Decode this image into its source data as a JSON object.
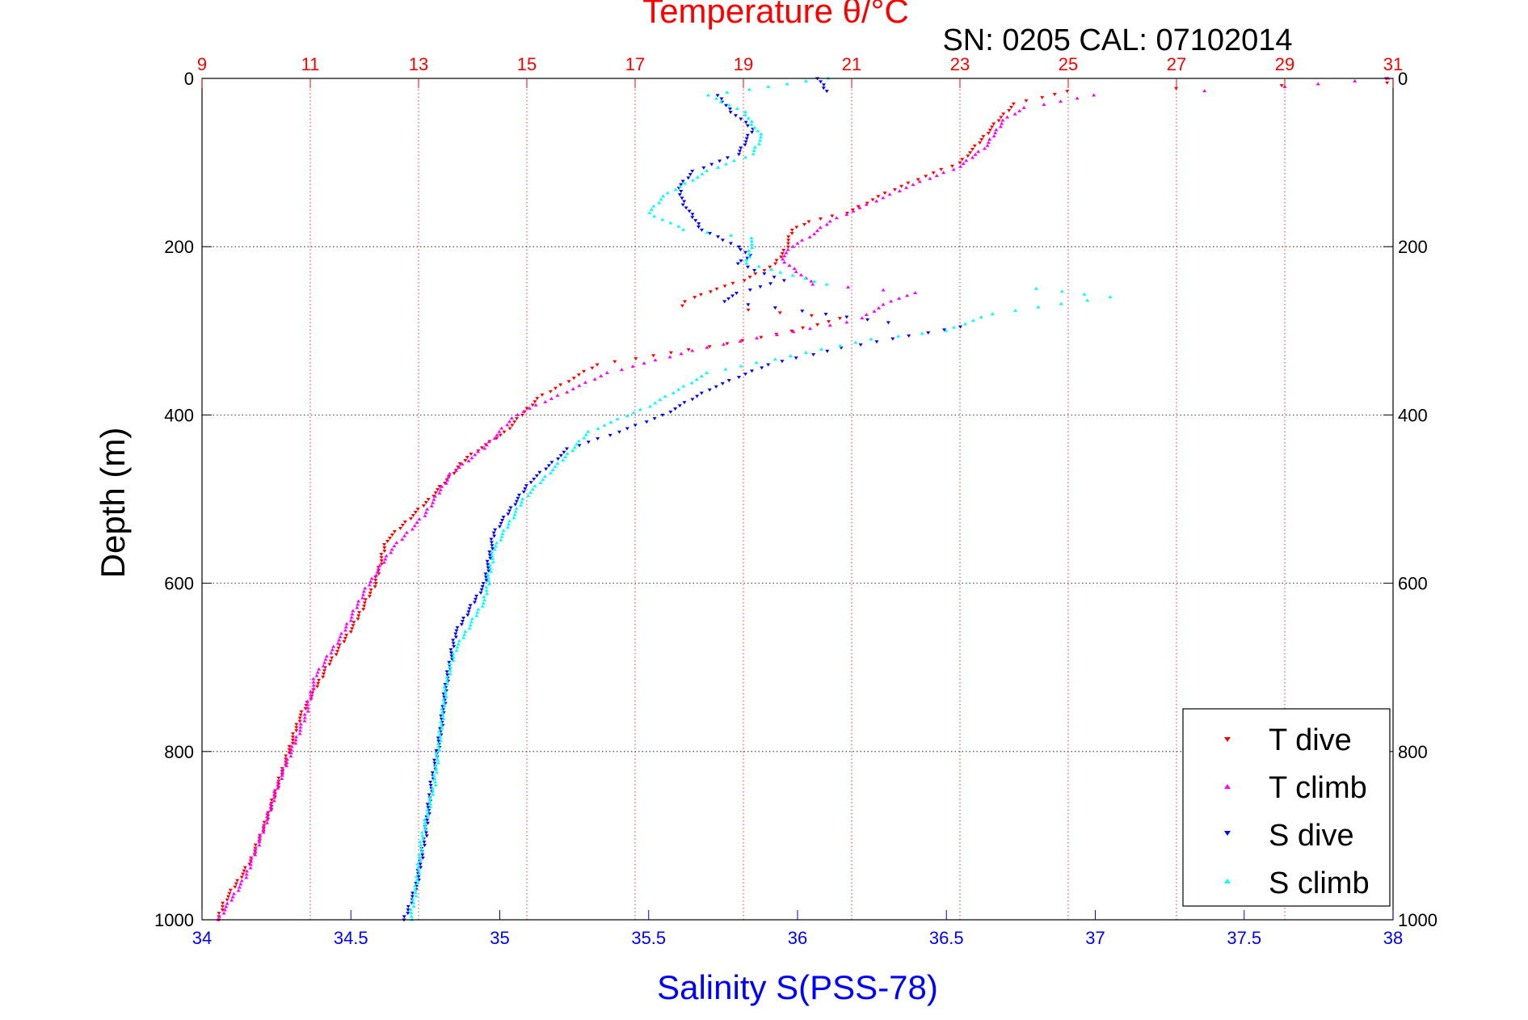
{
  "chart_data": {
    "type": "scatter",
    "title": "Temperature θ/°C",
    "subtitle": "SN: 0205  CAL: 07102014",
    "xlabel": "Salinity S(PSS-78)",
    "ylabel": "Depth (m)",
    "x_top": {
      "label": "Temperature θ/°C",
      "lim": [
        9,
        31
      ],
      "ticks": [
        9,
        11,
        13,
        15,
        17,
        19,
        21,
        23,
        25,
        27,
        29,
        31
      ]
    },
    "x_bottom": {
      "label": "Salinity S(PSS-78)",
      "lim": [
        34,
        38
      ],
      "ticks": [
        34,
        34.5,
        35,
        35.5,
        36,
        36.5,
        37,
        37.5,
        38
      ]
    },
    "y": {
      "lim": [
        0,
        1000
      ],
      "reversed": true,
      "ticks": [
        0,
        200,
        400,
        600,
        800,
        1000
      ]
    },
    "legend_position": "bottom-right",
    "series": [
      {
        "name": "T dive",
        "axis": "temperature",
        "color": "#ff0000",
        "marker": "triangle-down",
        "points": [
          [
            30.9,
            0
          ],
          [
            30.9,
            5
          ],
          [
            25,
            15
          ],
          [
            24,
            30
          ],
          [
            23.7,
            50
          ],
          [
            23.3,
            80
          ],
          [
            23,
            100
          ],
          [
            22.2,
            120
          ],
          [
            21.5,
            140
          ],
          [
            20.9,
            160
          ],
          [
            20.2,
            170
          ],
          [
            19.9,
            180
          ],
          [
            19.8,
            200
          ],
          [
            19.6,
            220
          ],
          [
            19,
            240
          ],
          [
            18.5,
            250
          ],
          [
            18.1,
            260
          ],
          [
            17.9,
            265
          ],
          [
            17.9,
            270
          ],
          [
            19.1,
            275
          ],
          [
            20.8,
            285
          ],
          [
            19.9,
            300
          ],
          [
            18.7,
            315
          ],
          [
            16.3,
            340
          ],
          [
            15.2,
            380
          ],
          [
            14.6,
            420
          ],
          [
            13.9,
            450
          ],
          [
            13.2,
            500
          ],
          [
            12.4,
            550
          ],
          [
            12.2,
            600
          ],
          [
            11.8,
            650
          ],
          [
            11.3,
            700
          ],
          [
            10.8,
            760
          ],
          [
            10.5,
            820
          ],
          [
            10.2,
            880
          ],
          [
            9.9,
            930
          ],
          [
            9.4,
            980
          ],
          [
            9.3,
            1000
          ]
        ]
      },
      {
        "name": "T climb",
        "axis": "temperature",
        "color": "#ff00ff",
        "marker": "triangle-up",
        "points": [
          [
            30.9,
            0
          ],
          [
            29,
            10
          ],
          [
            27.5,
            15
          ],
          [
            25.5,
            20
          ],
          [
            24.2,
            35
          ],
          [
            23.8,
            50
          ],
          [
            23.5,
            80
          ],
          [
            23,
            105
          ],
          [
            22,
            130
          ],
          [
            21.3,
            150
          ],
          [
            20.6,
            170
          ],
          [
            20.3,
            185
          ],
          [
            19.9,
            200
          ],
          [
            19.7,
            215
          ],
          [
            20.3,
            245
          ],
          [
            22.2,
            255
          ],
          [
            21.7,
            265
          ],
          [
            21.2,
            285
          ],
          [
            20.9,
            290
          ],
          [
            18.3,
            320
          ],
          [
            16.5,
            350
          ],
          [
            14.8,
            400
          ],
          [
            14.2,
            440
          ],
          [
            13.6,
            470
          ],
          [
            13.1,
            520
          ],
          [
            12.5,
            560
          ],
          [
            12,
            610
          ],
          [
            11.6,
            660
          ],
          [
            11.1,
            710
          ],
          [
            10.9,
            760
          ],
          [
            10.4,
            840
          ],
          [
            10.1,
            900
          ],
          [
            9.8,
            950
          ],
          [
            9.3,
            1000
          ]
        ]
      },
      {
        "name": "S dive",
        "axis": "salinity",
        "color": "#0000ff",
        "marker": "triangle-down",
        "points": [
          [
            36.07,
            0
          ],
          [
            36.1,
            15
          ],
          [
            35.73,
            20
          ],
          [
            35.78,
            40
          ],
          [
            35.85,
            60
          ],
          [
            35.8,
            90
          ],
          [
            35.65,
            110
          ],
          [
            35.6,
            130
          ],
          [
            35.62,
            150
          ],
          [
            35.68,
            180
          ],
          [
            35.8,
            200
          ],
          [
            35.84,
            210
          ],
          [
            35.8,
            220
          ],
          [
            35.95,
            240
          ],
          [
            35.8,
            255
          ],
          [
            35.75,
            265
          ],
          [
            36.1,
            280
          ],
          [
            36.3,
            290
          ],
          [
            36.55,
            295
          ],
          [
            36.15,
            320
          ],
          [
            35.9,
            340
          ],
          [
            35.7,
            370
          ],
          [
            35.55,
            400
          ],
          [
            35.4,
            420
          ],
          [
            35.23,
            440
          ],
          [
            35.1,
            480
          ],
          [
            34.98,
            540
          ],
          [
            34.95,
            600
          ],
          [
            34.85,
            660
          ],
          [
            34.82,
            720
          ],
          [
            34.8,
            780
          ],
          [
            34.77,
            840
          ],
          [
            34.75,
            900
          ],
          [
            34.72,
            960
          ],
          [
            34.68,
            1000
          ]
        ]
      },
      {
        "name": "S climb",
        "axis": "salinity",
        "color": "#00ffff",
        "marker": "triangle-up",
        "points": [
          [
            36.1,
            0
          ],
          [
            35.9,
            10
          ],
          [
            35.7,
            20
          ],
          [
            35.82,
            40
          ],
          [
            35.88,
            70
          ],
          [
            35.85,
            90
          ],
          [
            35.7,
            110
          ],
          [
            35.55,
            140
          ],
          [
            35.5,
            160
          ],
          [
            35.62,
            180
          ],
          [
            35.85,
            190
          ],
          [
            35.83,
            220
          ],
          [
            36.1,
            245
          ],
          [
            36.8,
            250
          ],
          [
            37.05,
            260
          ],
          [
            36.65,
            280
          ],
          [
            36.5,
            300
          ],
          [
            36.25,
            310
          ],
          [
            35.7,
            350
          ],
          [
            35.5,
            390
          ],
          [
            35.3,
            420
          ],
          [
            35.22,
            450
          ],
          [
            35.08,
            500
          ],
          [
            34.98,
            560
          ],
          [
            34.95,
            620
          ],
          [
            34.85,
            680
          ],
          [
            34.82,
            720
          ],
          [
            34.8,
            780
          ],
          [
            34.78,
            840
          ],
          [
            34.74,
            900
          ],
          [
            34.72,
            960
          ],
          [
            34.7,
            1000
          ]
        ]
      }
    ]
  },
  "colors": {
    "temperature_axis": "#ff0000",
    "salinity_axis": "#0000ff",
    "text": "#000000",
    "grid_temperature": "#ff0000",
    "grid_depth": "#000000"
  }
}
